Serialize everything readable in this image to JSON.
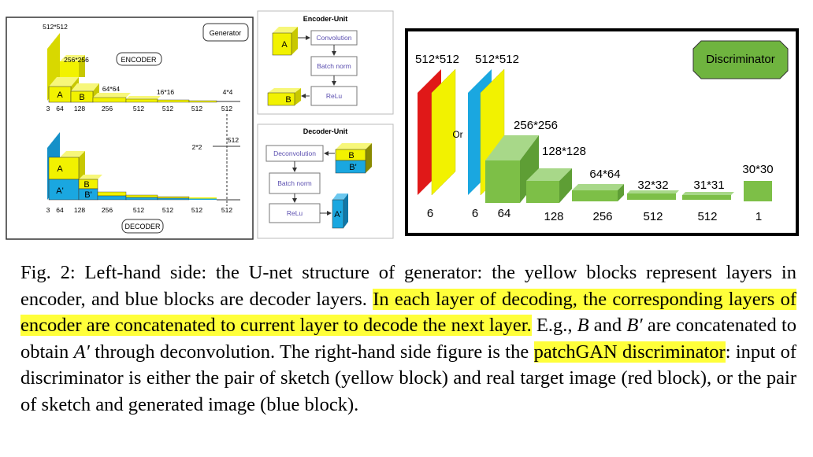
{
  "figure": {
    "generator": {
      "title": "Generator",
      "encoder_label": "ENCODER",
      "decoder_label": "DECODER",
      "encoder_sizes": [
        "512*512",
        "256*256",
        "64*64",
        "16*16",
        "4*4"
      ],
      "encoder_channels": [
        "3",
        "64",
        "128",
        "256",
        "512",
        "512",
        "512",
        "512"
      ],
      "bridge_size": "2*2",
      "bridge_channel": "512",
      "decoder_channels": [
        "3",
        "64",
        "128",
        "256",
        "512",
        "512",
        "512",
        "512"
      ],
      "block_a": "A",
      "block_b": "B",
      "block_a_prime": "A'",
      "block_b_prime": "B'"
    },
    "encoder_unit": {
      "title": "Encoder-Unit",
      "block_a": "A",
      "block_b": "B",
      "steps": [
        "Convolution",
        "Batch norm",
        "ReLu"
      ]
    },
    "decoder_unit": {
      "title": "Decoder-Unit",
      "steps": [
        "Deconvolution",
        "Batch norm",
        "ReLu"
      ],
      "block_b": "B",
      "block_b_prime": "B'",
      "block_a_prime": "A'"
    },
    "discriminator": {
      "title": "Discriminator",
      "input_sizes": [
        "512*512",
        "512*512"
      ],
      "or_label": "Or",
      "layer_sizes": [
        "256*256",
        "128*128",
        "64*64",
        "32*32",
        "31*31",
        "30*30"
      ],
      "channels": [
        "6",
        "6",
        "64",
        "128",
        "256",
        "512",
        "512",
        "1"
      ]
    },
    "colors": {
      "yellow": "#f2f200",
      "blue": "#1aa7e0",
      "green": "#7dbf47",
      "red": "#e01818"
    }
  },
  "caption": {
    "label": "Fig. 2:",
    "part1": " Left-hand side: the U-net structure of generator: the yellow blocks represent layers in encoder, and blue blocks are decoder layers. ",
    "highlight1": "In each layer of decoding, the corresponding layers of encoder are concatenated to current layer to decode the next layer.",
    "part2": " E.g., ",
    "var_b": "B",
    "and_text": " and ",
    "var_b_prime": "B′",
    "part3": " are concatenated to obtain ",
    "var_a_prime": "A′",
    "part4": " through deconvolution. The right-hand side figure is the ",
    "highlight2": "patchGAN discriminator",
    "part5": ": input of discriminator is either the pair of sketch (yellow block) and real target image (red block), or the pair of sketch and generated image (blue block)."
  }
}
